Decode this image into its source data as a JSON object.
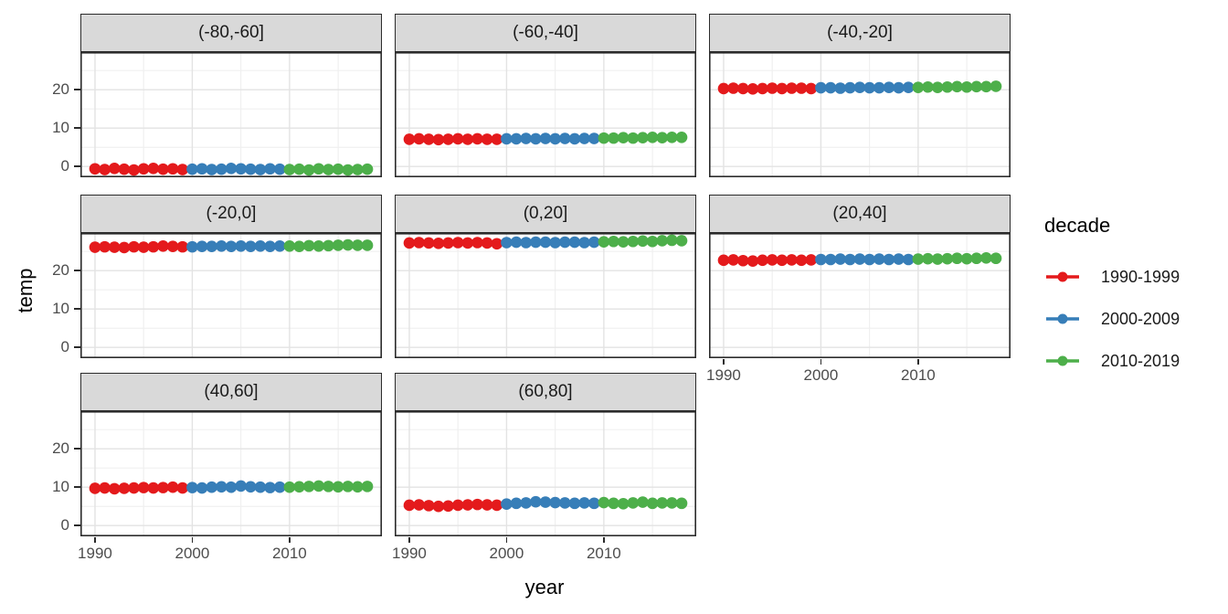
{
  "chart_data": {
    "type": "scatter",
    "title": "",
    "xlabel": "year",
    "ylabel": "temp",
    "x_ticks": [
      1990,
      2000,
      2010
    ],
    "y_ticks": [
      0,
      10,
      20
    ],
    "xlim": [
      1988.5,
      2019.5
    ],
    "ylim": [
      -2.8,
      29.8
    ],
    "grid": {
      "major_x": [
        1990,
        2000,
        2010
      ],
      "minor_x": [
        1995,
        2005,
        2015
      ],
      "major_y": [
        0,
        10,
        20
      ],
      "minor_y": [
        5,
        15,
        25
      ]
    },
    "years": [
      1990,
      1991,
      1992,
      1993,
      1994,
      1995,
      1996,
      1997,
      1998,
      1999,
      2000,
      2001,
      2002,
      2003,
      2004,
      2005,
      2006,
      2007,
      2008,
      2009,
      2010,
      2011,
      2012,
      2013,
      2014,
      2015,
      2016,
      2017,
      2018
    ],
    "facets": [
      {
        "label": "(-80,-60]",
        "values": [
          -0.6,
          -0.8,
          -0.5,
          -0.7,
          -0.9,
          -0.6,
          -0.5,
          -0.7,
          -0.6,
          -0.8,
          -0.7,
          -0.6,
          -0.8,
          -0.7,
          -0.5,
          -0.6,
          -0.7,
          -0.8,
          -0.6,
          -0.7,
          -0.8,
          -0.7,
          -0.9,
          -0.6,
          -0.8,
          -0.7,
          -0.9,
          -0.8,
          -0.7
        ]
      },
      {
        "label": "(-60,-40]",
        "values": [
          7.1,
          7.2,
          7.1,
          7.0,
          7.1,
          7.2,
          7.1,
          7.2,
          7.1,
          7.1,
          7.2,
          7.2,
          7.3,
          7.2,
          7.3,
          7.2,
          7.3,
          7.2,
          7.3,
          7.3,
          7.4,
          7.4,
          7.5,
          7.4,
          7.5,
          7.6,
          7.5,
          7.6,
          7.6
        ]
      },
      {
        "label": "(-40,-20]",
        "values": [
          20.3,
          20.4,
          20.3,
          20.2,
          20.3,
          20.4,
          20.3,
          20.4,
          20.4,
          20.3,
          20.5,
          20.5,
          20.4,
          20.5,
          20.6,
          20.5,
          20.5,
          20.6,
          20.5,
          20.6,
          20.6,
          20.7,
          20.6,
          20.7,
          20.8,
          20.7,
          20.8,
          20.8,
          20.9
        ]
      },
      {
        "label": "(-20,0]",
        "values": [
          26.1,
          26.2,
          26.1,
          26.0,
          26.2,
          26.1,
          26.2,
          26.4,
          26.3,
          26.2,
          26.2,
          26.3,
          26.3,
          26.4,
          26.3,
          26.4,
          26.3,
          26.4,
          26.3,
          26.4,
          26.4,
          26.3,
          26.5,
          26.4,
          26.5,
          26.6,
          26.7,
          26.6,
          26.6
        ]
      },
      {
        "label": "(0,20]",
        "values": [
          27.2,
          27.3,
          27.2,
          27.1,
          27.2,
          27.3,
          27.2,
          27.3,
          27.2,
          27.0,
          27.3,
          27.4,
          27.3,
          27.4,
          27.4,
          27.3,
          27.4,
          27.4,
          27.3,
          27.4,
          27.5,
          27.6,
          27.5,
          27.6,
          27.7,
          27.6,
          27.8,
          27.9,
          27.8
        ]
      },
      {
        "label": "(20,40]",
        "values": [
          22.7,
          22.8,
          22.6,
          22.5,
          22.7,
          22.8,
          22.7,
          22.8,
          22.7,
          22.8,
          22.9,
          22.9,
          23.0,
          22.9,
          23.0,
          22.9,
          23.0,
          22.9,
          23.0,
          22.9,
          23.0,
          23.1,
          23.0,
          23.1,
          23.2,
          23.1,
          23.2,
          23.3,
          23.2
        ]
      },
      {
        "label": "(40,60]",
        "values": [
          9.7,
          9.8,
          9.6,
          9.7,
          9.8,
          9.9,
          9.8,
          9.9,
          10.0,
          9.8,
          9.9,
          9.8,
          10.0,
          10.1,
          10.0,
          10.3,
          10.1,
          10.0,
          9.9,
          10.0,
          10.0,
          10.1,
          10.2,
          10.3,
          10.2,
          10.1,
          10.2,
          10.1,
          10.2
        ]
      },
      {
        "label": "(60,80]",
        "values": [
          5.3,
          5.4,
          5.2,
          5.0,
          5.1,
          5.3,
          5.4,
          5.5,
          5.4,
          5.3,
          5.6,
          5.8,
          5.9,
          6.2,
          6.1,
          6.0,
          5.9,
          5.8,
          5.9,
          5.8,
          6.0,
          5.8,
          5.7,
          5.9,
          6.1,
          5.8,
          5.9,
          5.9,
          5.8
        ]
      }
    ],
    "decades": [
      {
        "label": "1990-1999",
        "color": "#E41A1C",
        "start": 1990,
        "end": 1999
      },
      {
        "label": "2000-2009",
        "color": "#377EB8",
        "start": 2000,
        "end": 2009
      },
      {
        "label": "2010-2019",
        "color": "#4DAF4A",
        "start": 2010,
        "end": 2019
      }
    ],
    "legend": {
      "title": "decade",
      "position": "right"
    },
    "theme": {
      "strip_fill": "#d9d9d9",
      "panel_border": "#2b2b2b",
      "grid_major": "#e3e3e3",
      "grid_minor": "#f0f0f0",
      "tick_label_color": "#4d4d4d",
      "point_radius": 6.3
    }
  }
}
